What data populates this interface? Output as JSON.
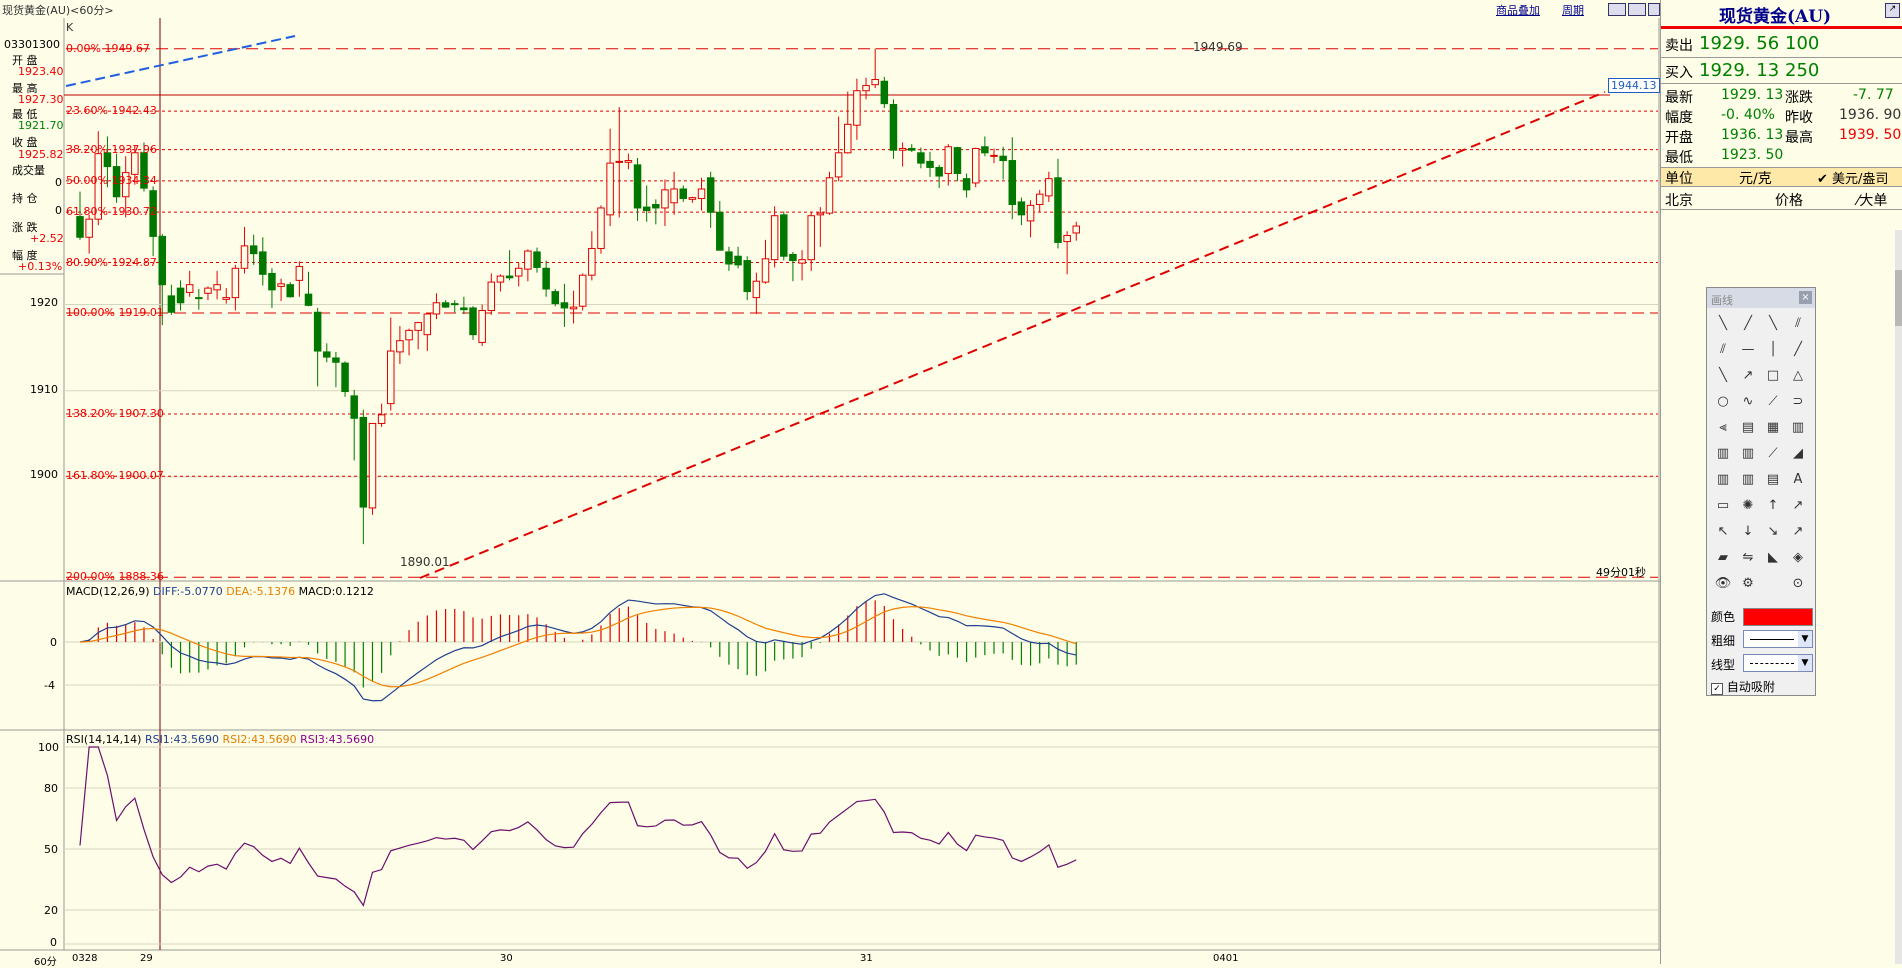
{
  "topbar": {
    "title": "现货黄金(AU)<60分>",
    "links": [
      "商品叠加",
      "周期"
    ],
    "k_label": "K"
  },
  "left_info": {
    "datetime": "03301300",
    "open_label": "开  盘",
    "open": "1923.40",
    "high_label": "最  高",
    "high": "1927.30",
    "low_label": "最  低",
    "low": "1921.70",
    "close_label": "收  盘",
    "close": "1925.82",
    "volume_label": "成交量",
    "volume": "0",
    "oi_label": "持  仓",
    "oi": "0",
    "change_label": "涨  跌",
    "change": "+2.52",
    "amplitude_label": "幅  度",
    "amplitude": "+0.13%"
  },
  "main_chart": {
    "y_ticks": [
      "1920",
      "1910",
      "1900"
    ],
    "fib_levels": [
      "0.00% 1949.67",
      "23.60% 1942.43",
      "38.20% 1937.96",
      "50.00% 1934.34",
      "61.80% 1930.72",
      "80.90% 1924.87",
      "100.00% 1919.01",
      "138.20% 1907.30",
      "161.80% 1900.07",
      "200.00% 1888.36"
    ],
    "high_annotation": "1949.69",
    "low_annotation": "1890.01",
    "price_tag": "1944.13",
    "countdown": "49分01秒"
  },
  "macd": {
    "title": "MACD(12,26,9)",
    "diff": "DIFF:-5.0770",
    "dea": "DEA:-5.1376",
    "macd": "MACD:0.1212",
    "y_ticks": [
      "0",
      "-4"
    ]
  },
  "rsi": {
    "title": "RSI(14,14,14)",
    "rsi1": "RSI1:43.5690",
    "rsi2": "RSI2:43.5690",
    "rsi3": "RSI3:43.5690",
    "y_ticks": [
      "100",
      "80",
      "50",
      "20",
      "0"
    ]
  },
  "x_axis": {
    "labels": [
      "60分",
      "0328",
      "29",
      "30",
      "31",
      "0401"
    ]
  },
  "quote": {
    "name": "现货黄金(AU)",
    "sell_label": "卖出",
    "sell_price": "1929. 56",
    "sell_qty": "100",
    "buy_label": "买入",
    "buy_price": "1929. 13",
    "buy_qty": "250",
    "last_label": "最新",
    "last": "1929. 13",
    "chg_label": "涨跌",
    "chg": "-7. 77",
    "amp_label": "幅度",
    "amp": "-0. 40%",
    "prev_label": "昨收",
    "prev": "1936. 90",
    "open_label": "开盘",
    "open": "1936. 13",
    "high_label": "最高",
    "high": "1939. 50",
    "low_label": "最低",
    "low": "1923. 50",
    "unit_label": "单位",
    "unit": "元/克",
    "usd_unit": "美元/盎司",
    "city": "北京",
    "price_col": "价格",
    "big_order": "大单"
  },
  "toolbox": {
    "title": "画线",
    "color_label": "颜色",
    "weight_label": "粗细",
    "line_label": "线型",
    "auto_snap": "自动吸附",
    "color": "#ff0000"
  },
  "colors": {
    "up": "#e00000",
    "down": "#007800",
    "bg": "#fefde8",
    "fib": "#e00000"
  },
  "chart_data": {
    "type": "candlestick",
    "title": "现货黄金(AU)<60分>",
    "candles_ohlc": [
      [
        1930.2,
        1933.1,
        1927.5,
        1927.8
      ],
      [
        1927.8,
        1930.4,
        1925.9,
        1929.9
      ],
      [
        1929.9,
        1940.1,
        1929.2,
        1937.5
      ],
      [
        1937.6,
        1939.5,
        1933.6,
        1936.0
      ],
      [
        1936.0,
        1937.5,
        1931.8,
        1932.5
      ],
      [
        1932.5,
        1937.2,
        1930.1,
        1935.3
      ],
      [
        1935.1,
        1938.5,
        1933.9,
        1937.6
      ],
      [
        1937.6,
        1938.8,
        1933.1,
        1933.5
      ],
      [
        1933.2,
        1933.7,
        1925.6,
        1927.9
      ],
      [
        1927.9,
        1928.2,
        1917.6,
        1922.3
      ],
      [
        1921.0,
        1922.3,
        1918.8,
        1919.1
      ],
      [
        1921.9,
        1922.8,
        1919.3,
        1920.2
      ],
      [
        1921.4,
        1923.9,
        1920.9,
        1922.3
      ],
      [
        1920.8,
        1921.8,
        1919.4,
        1920.7
      ],
      [
        1921.3,
        1922.1,
        1920.5,
        1921.9
      ],
      [
        1921.7,
        1923.9,
        1920.6,
        1922.3
      ],
      [
        1920.6,
        1921.9,
        1920.1,
        1920.8
      ],
      [
        1920.8,
        1924.6,
        1919.3,
        1924.2
      ],
      [
        1924.2,
        1929.0,
        1923.6,
        1926.8
      ],
      [
        1926.8,
        1928.1,
        1924.6,
        1925.9
      ],
      [
        1926.1,
        1927.8,
        1922.2,
        1923.5
      ],
      [
        1923.6,
        1924.2,
        1919.6,
        1921.7
      ],
      [
        1922.1,
        1923.0,
        1920.4,
        1922.4
      ],
      [
        1922.3,
        1922.6,
        1920.8,
        1920.9
      ],
      [
        1922.8,
        1925.0,
        1920.9,
        1924.4
      ],
      [
        1921.2,
        1923.8,
        1919.8,
        1919.9
      ],
      [
        1919.1,
        1919.6,
        1910.5,
        1914.6
      ],
      [
        1914.5,
        1915.5,
        1913.3,
        1913.9
      ],
      [
        1913.8,
        1914.5,
        1910.4,
        1913.3
      ],
      [
        1913.2,
        1913.4,
        1909.3,
        1909.9
      ],
      [
        1909.4,
        1910.1,
        1901.9,
        1906.8
      ],
      [
        1906.9,
        1907.8,
        1892.2,
        1896.5
      ],
      [
        1896.4,
        1906.0,
        1895.6,
        1906.2
      ],
      [
        1906.2,
        1908.5,
        1905.8,
        1907.2
      ],
      [
        1908.5,
        1918.5,
        1907.7,
        1914.6
      ],
      [
        1914.5,
        1917.5,
        1913.1,
        1915.8
      ],
      [
        1915.9,
        1917.2,
        1914.1,
        1917.0
      ],
      [
        1917.0,
        1918.0,
        1914.8,
        1917.9
      ],
      [
        1916.5,
        1918.8,
        1914.6,
        1918.9
      ],
      [
        1918.9,
        1921.3,
        1918.3,
        1920.2
      ],
      [
        1920.2,
        1920.5,
        1919.6,
        1919.7
      ],
      [
        1920.1,
        1920.5,
        1919.1,
        1920.0
      ],
      [
        1919.6,
        1920.9,
        1918.9,
        1919.4
      ],
      [
        1919.6,
        1919.8,
        1915.9,
        1916.5
      ],
      [
        1915.6,
        1920.0,
        1915.2,
        1919.3
      ],
      [
        1919.3,
        1923.6,
        1918.8,
        1922.6
      ],
      [
        1922.6,
        1923.5,
        1921.5,
        1923.3
      ],
      [
        1923.3,
        1926.3,
        1922.8,
        1923.1
      ],
      [
        1923.3,
        1924.8,
        1922.1,
        1924.2
      ],
      [
        1924.1,
        1926.4,
        1922.7,
        1926.2
      ],
      [
        1926.1,
        1926.6,
        1923.7,
        1924.3
      ],
      [
        1924.2,
        1925.1,
        1920.9,
        1921.8
      ],
      [
        1921.5,
        1921.8,
        1919.8,
        1920.1
      ],
      [
        1920.2,
        1922.4,
        1917.4,
        1919.6
      ],
      [
        1919.5,
        1921.6,
        1917.8,
        1919.7
      ],
      [
        1919.8,
        1923.6,
        1919.3,
        1923.4
      ],
      [
        1923.4,
        1928.5,
        1922.8,
        1926.5
      ],
      [
        1926.5,
        1931.5,
        1925.9,
        1931.2
      ],
      [
        1930.4,
        1940.4,
        1929.1,
        1936.4
      ],
      [
        1936.5,
        1942.9,
        1930.1,
        1936.6
      ],
      [
        1936.5,
        1937.5,
        1935.7,
        1936.7
      ],
      [
        1936.2,
        1937.0,
        1929.7,
        1931.2
      ],
      [
        1931.3,
        1933.8,
        1929.6,
        1930.9
      ],
      [
        1931.6,
        1932.2,
        1929.3,
        1931.2
      ],
      [
        1931.2,
        1934.5,
        1929.1,
        1933.3
      ],
      [
        1931.8,
        1935.4,
        1930.4,
        1933.4
      ],
      [
        1933.4,
        1933.8,
        1931.9,
        1932.3
      ],
      [
        1932.2,
        1932.5,
        1931.8,
        1932.4
      ],
      [
        1932.3,
        1934.7,
        1930.9,
        1933.4
      ],
      [
        1934.7,
        1935.4,
        1928.9,
        1930.7
      ],
      [
        1930.7,
        1932.0,
        1926.3,
        1926.3
      ],
      [
        1926.1,
        1926.7,
        1923.9,
        1924.7
      ],
      [
        1925.6,
        1926.7,
        1924.2,
        1924.6
      ],
      [
        1925.1,
        1925.6,
        1920.5,
        1921.5
      ],
      [
        1920.8,
        1923.7,
        1918.9,
        1922.7
      ],
      [
        1922.6,
        1927.5,
        1922.4,
        1925.3
      ],
      [
        1925.2,
        1931.4,
        1924.3,
        1930.3
      ],
      [
        1930.4,
        1930.8,
        1925.1,
        1925.6
      ],
      [
        1925.8,
        1926.1,
        1922.7,
        1925.1
      ],
      [
        1924.8,
        1926.3,
        1922.8,
        1925.2
      ],
      [
        1925.2,
        1930.7,
        1923.9,
        1930.3
      ],
      [
        1930.4,
        1931.3,
        1926.7,
        1930.6
      ],
      [
        1930.6,
        1935.4,
        1930.4,
        1934.7
      ],
      [
        1934.8,
        1941.8,
        1934.3,
        1937.6
      ],
      [
        1937.6,
        1944.7,
        1937.5,
        1940.9
      ],
      [
        1940.8,
        1946.2,
        1939.1,
        1944.8
      ],
      [
        1944.8,
        1946.3,
        1943.8,
        1945.4
      ],
      [
        1945.5,
        1949.7,
        1945.1,
        1946.1
      ],
      [
        1945.9,
        1946.4,
        1942.8,
        1943.3
      ],
      [
        1943.2,
        1943.8,
        1936.9,
        1937.9
      ],
      [
        1937.9,
        1938.8,
        1936.0,
        1938.1
      ],
      [
        1938.1,
        1938.6,
        1937.7,
        1937.9
      ],
      [
        1937.6,
        1938.2,
        1935.8,
        1936.4
      ],
      [
        1936.6,
        1937.7,
        1934.8,
        1935.9
      ],
      [
        1935.9,
        1936.2,
        1933.5,
        1934.9
      ],
      [
        1935.2,
        1938.6,
        1933.8,
        1938.3
      ],
      [
        1938.2,
        1938.3,
        1934.3,
        1935.2
      ],
      [
        1934.6,
        1935.2,
        1932.4,
        1933.3
      ],
      [
        1934.1,
        1938.2,
        1933.6,
        1938.1
      ],
      [
        1938.3,
        1939.5,
        1937.2,
        1937.6
      ],
      [
        1937.3,
        1938.1,
        1936.4,
        1937.3
      ],
      [
        1937.2,
        1938.3,
        1934.5,
        1936.7
      ],
      [
        1936.7,
        1939.4,
        1929.9,
        1931.6
      ],
      [
        1931.9,
        1932.4,
        1929.2,
        1930.4
      ],
      [
        1929.7,
        1932.1,
        1927.8,
        1931.5
      ],
      [
        1931.6,
        1933.3,
        1930.7,
        1932.8
      ],
      [
        1932.6,
        1935.4,
        1931.9,
        1934.6
      ],
      [
        1934.7,
        1936.9,
        1926.5,
        1927.2
      ],
      [
        1927.3,
        1928.5,
        1923.5,
        1928.0
      ],
      [
        1928.3,
        1929.6,
        1927.4,
        1929.1
      ]
    ],
    "fibonacci": {
      "high": 1949.69,
      "low": 1890.01,
      "levels": [
        [
          0.0,
          1949.67
        ],
        [
          23.6,
          1942.43
        ],
        [
          38.2,
          1937.96
        ],
        [
          50.0,
          1934.34
        ],
        [
          61.8,
          1930.72
        ],
        [
          80.9,
          1924.87
        ],
        [
          100.0,
          1919.01
        ],
        [
          138.2,
          1907.3
        ],
        [
          161.8,
          1900.07
        ],
        [
          200.0,
          1888.36
        ]
      ]
    },
    "macd": {
      "diff": -5.077,
      "dea": -5.1376,
      "macd": 0.1212
    },
    "rsi": {
      "rsi1": 43.569,
      "rsi2": 43.569,
      "rsi3": 43.569
    },
    "x_labels": [
      "0328",
      "29",
      "30",
      "31",
      "0401"
    ]
  }
}
